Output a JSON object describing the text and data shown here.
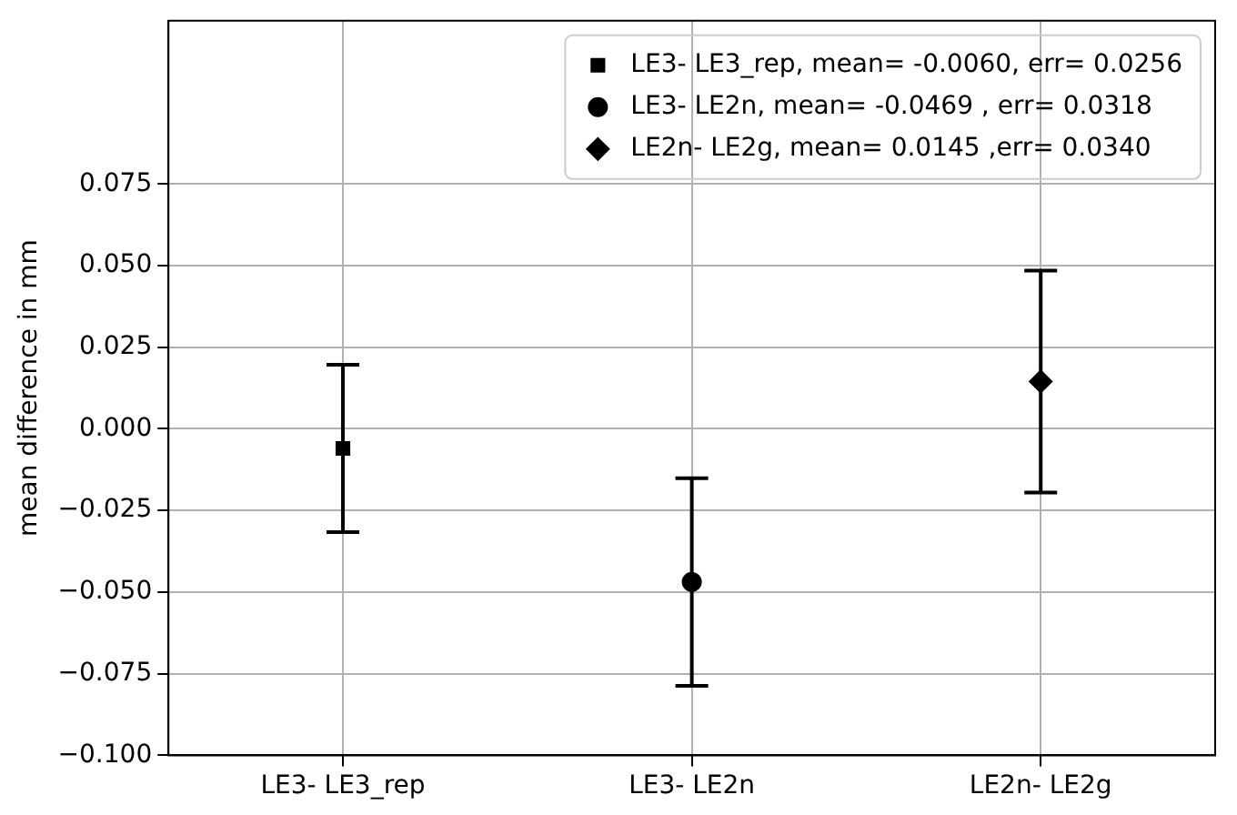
{
  "chart_data": {
    "type": "scatter",
    "ylabel": "mean difference in mm",
    "categories": [
      "LE3- LE3_rep",
      "LE3- LE2n",
      "LE2n- LE2g"
    ],
    "ylim": [
      -0.1,
      0.125
    ],
    "yticks": [
      {
        "value": -0.1,
        "label": "−0.100"
      },
      {
        "value": -0.075,
        "label": "−0.075"
      },
      {
        "value": -0.05,
        "label": "−0.050"
      },
      {
        "value": -0.025,
        "label": "−0.025"
      },
      {
        "value": 0,
        "label": "0.000"
      },
      {
        "value": 0.025,
        "label": "0.025"
      },
      {
        "value": 0.05,
        "label": "0.050"
      },
      {
        "value": 0.075,
        "label": "0.075"
      }
    ],
    "grid": true,
    "legend": "top right",
    "series": [
      {
        "name": "LE3- LE3_rep, mean= -0.0060, err= 0.0256",
        "color": "#000000",
        "marker": "square",
        "x": [
          "LE3- LE3_rep"
        ],
        "values": [
          -0.006
        ],
        "errors": [
          0.0256
        ]
      },
      {
        "name": "LE3- LE2n, mean= -0.0469 , err= 0.0318",
        "color": "#000000",
        "marker": "circle",
        "x": [
          "LE3- LE2n"
        ],
        "values": [
          -0.0469
        ],
        "errors": [
          0.0318
        ]
      },
      {
        "name": "LE2n- LE2g, mean= 0.0145 ,err= 0.0340",
        "color": "#000000",
        "marker": "diamond",
        "x": [
          "LE2n- LE2g"
        ],
        "values": [
          0.0145
        ],
        "errors": [
          0.034
        ]
      }
    ]
  }
}
